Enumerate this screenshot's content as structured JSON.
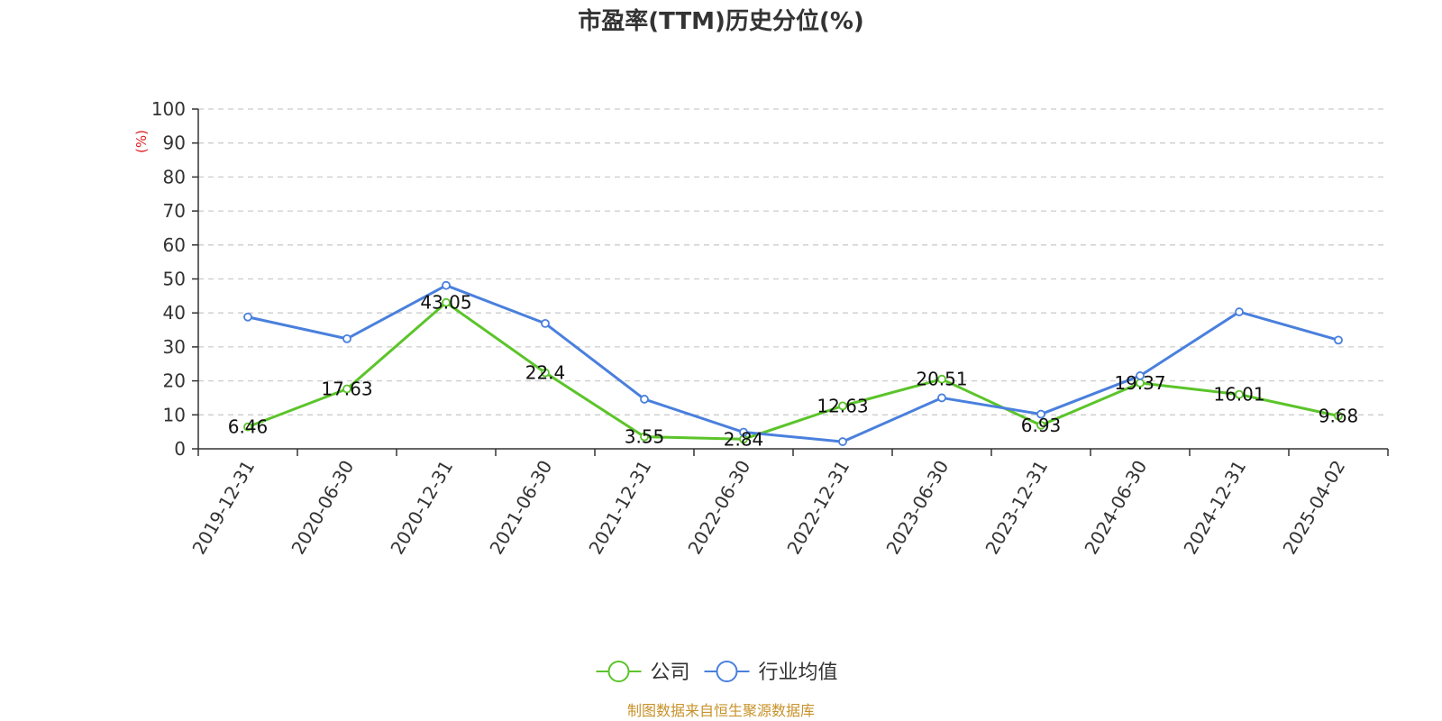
{
  "chart_data": {
    "type": "line",
    "title": "市盈率(TTM)历史分位(%)",
    "y_unit_label": "(%)",
    "categories": [
      "2019-12-31",
      "2020-06-30",
      "2020-12-31",
      "2021-06-30",
      "2021-12-31",
      "2022-06-30",
      "2022-12-31",
      "2023-06-30",
      "2023-12-31",
      "2024-06-30",
      "2024-12-31",
      "2025-04-02"
    ],
    "ylim": [
      0,
      100
    ],
    "y_ticks": [
      0,
      10,
      20,
      30,
      40,
      50,
      60,
      70,
      80,
      90,
      100
    ],
    "grid": true,
    "legend_position": "bottom-center",
    "series": [
      {
        "name": "公司",
        "color": "#5bc42a",
        "values": [
          6.46,
          17.63,
          43.05,
          22.4,
          3.55,
          2.84,
          12.63,
          20.51,
          6.93,
          19.37,
          16.01,
          9.68
        ],
        "labels": [
          "6.46",
          "17.63",
          "43.05",
          "22.4",
          "3.55",
          "2.84",
          "12.63",
          "20.51",
          "6.93",
          "19.37",
          "16.01",
          "9.68"
        ]
      },
      {
        "name": "行业均值",
        "color": "#4a80dd",
        "values": [
          38.8,
          32.4,
          48.1,
          36.9,
          14.6,
          4.9,
          2.1,
          15.0,
          10.2,
          21.5,
          40.3,
          32.0
        ]
      }
    ]
  },
  "footer": {
    "source": "制图数据来自恒生聚源数据库",
    "source_color": "#c8922a"
  },
  "colors": {
    "unit_label": "#e02020",
    "axis": "#333333",
    "grid": "#cccccc"
  }
}
